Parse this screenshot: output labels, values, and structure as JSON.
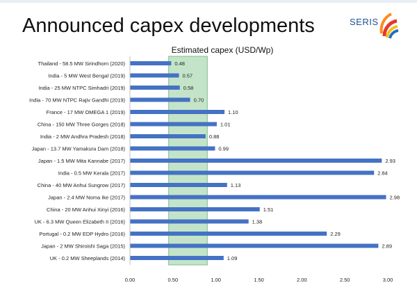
{
  "slide": {
    "title": "Announced capex developments"
  },
  "logo": {
    "text": "SERIS"
  },
  "colors": {
    "bar": "#4472c4",
    "highlight_fill": "#b9dfc0",
    "highlight_stroke": "#7dbf89"
  },
  "chart_data": {
    "type": "bar",
    "orientation": "horizontal",
    "title": "Estimated capex (USD/Wp)",
    "xlabel": "",
    "ylabel": "",
    "xlim": [
      0,
      3
    ],
    "x_ticks": [
      "0.00",
      "0.50",
      "1.00",
      "1.50",
      "2.00",
      "2.50",
      "3.00"
    ],
    "grid": false,
    "highlight_band": [
      0.45,
      0.9
    ],
    "categories": [
      "Thailand - 58.5 MW Sirindhorn (2020)",
      "India - 5 MW West Bengal (2019)",
      "India - 25 MW NTPC Simhadri (2019)",
      "India - 70 MW NTPC Rajiv Gandhi (2019)",
      "France - 17 MW OMEGA 1 (2019)",
      "China - 150 MW Three Gorges (2018)",
      "India - 2 MW Andhra Pradesh (2018)",
      "Japan - 13.7 MW Yamakura Dam (2018)",
      "Japan - 1.5 MW Mita Kannabe (2017)",
      "India - 0.5 MW Kerala (2017)",
      "China - 40 MW Anhui Sungrow (2017)",
      "Japan - 2.4 MW Noma Ike (2017)",
      "China - 20 MW Anhui Xinyi (2016)",
      "UK - 6.3 MW Queen Elizabeth II (2016)",
      "Portugal - 0.2 MW EDP Hydro (2016)",
      "Japan - 2 MW Shiroishi Saga (2015)",
      "UK - 0.2 MW Sheeplands (2014)"
    ],
    "values": [
      0.48,
      0.57,
      0.58,
      0.7,
      1.1,
      1.01,
      0.88,
      0.99,
      2.93,
      2.84,
      1.13,
      2.98,
      1.51,
      1.38,
      2.29,
      2.89,
      1.09
    ],
    "value_labels": [
      "0.48",
      "0.57",
      "0.58",
      "0.70",
      "1.10",
      "1.01",
      "0.88",
      "0.99",
      "2.93",
      "2.84",
      "1.13",
      "2.98",
      "1.51",
      "1.38",
      "2.29",
      "2.89",
      "1.09"
    ]
  }
}
